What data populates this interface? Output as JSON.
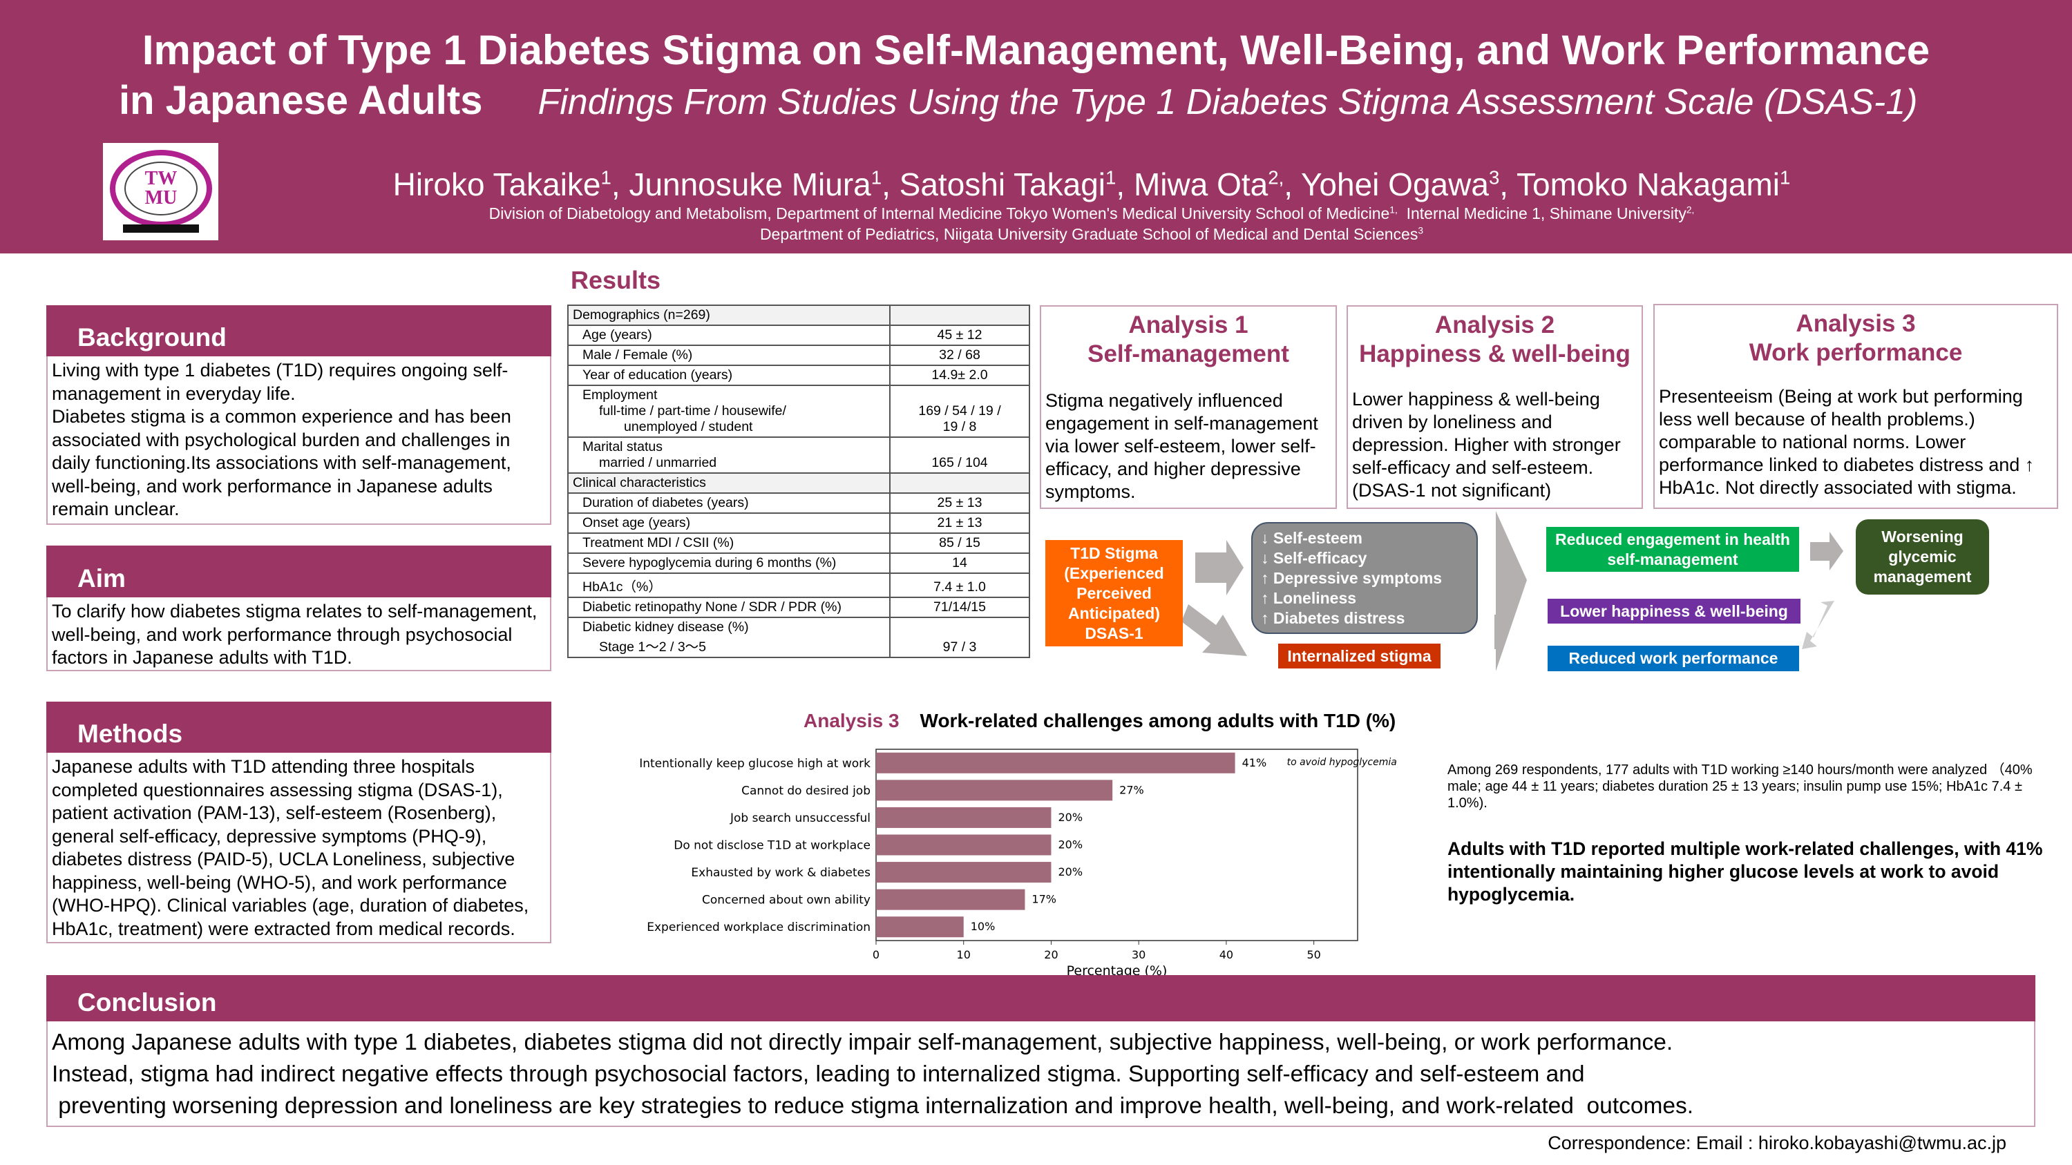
{
  "header": {
    "title_line1": "Impact of Type 1 Diabetes Stigma on Self-Management, Well-Being, and Work Performance",
    "title_line2": "in Japanese Adults",
    "subtitle": "Findings From Studies Using the Type 1 Diabetes Stigma Assessment Scale (DSAS-1)",
    "logo_text": "TWMU",
    "authors": [
      {
        "name": "Hiroko Takaike",
        "aff": "1"
      },
      {
        "name": "Junnosuke Miura",
        "aff": "1"
      },
      {
        "name": "Satoshi Takagi",
        "aff": "1"
      },
      {
        "name": "Miwa Ota",
        "aff": "2,"
      },
      {
        "name": "Yohei Ogawa",
        "aff": "3"
      },
      {
        "name": "Tomoko Nakagami",
        "aff": "1"
      }
    ],
    "affiliation_line1": "Division of Diabetology and Metabolism, Department of Internal Medicine Tokyo Women's Medical University School of Medicine",
    "affiliation_line1_sup": "1,",
    "affiliation_line1b": "Internal Medicine 1, Shimane University",
    "affiliation_line1b_sup": "2,",
    "affiliation_line2": "Department of Pediatrics, Niigata University Graduate School of Medical  and Dental Sciences",
    "affiliation_line2_sup": "3"
  },
  "colors": {
    "brand": "#9b3563",
    "orange": "#ff6600",
    "grey": "#8e8e8e",
    "red": "#cc3300",
    "green": "#00b050",
    "purple": "#7030a0",
    "blue": "#0070c0",
    "darkgreen": "#375623",
    "bar": "#a06a7a"
  },
  "background": {
    "title": "Background",
    "text": "Living with type 1 diabetes (T1D) requires ongoing self-management in everyday life.",
    "text2": "Diabetes stigma is a common experience and has been associated with psychological burden and challenges in daily functioning.Its associations with self-management, well-being, and work performance in Japanese adults remain unclear."
  },
  "aim": {
    "title": "Aim",
    "text": "To clarify how diabetes stigma relates to self-management, well-being, and work performance through psychosocial factors in Japanese adults with T1D."
  },
  "methods": {
    "title": "Methods",
    "text": "Japanese adults with T1D attending three hospitals completed questionnaires assessing stigma (DSAS-1), patient activation (PAM-13), self-esteem (Rosenberg), general self-efficacy, depressive symptoms (PHQ-9), diabetes distress (PAID-5), UCLA Loneliness, subjective happiness, well-being (WHO-5), and work performance (WHO-HPQ). Clinical variables (age, duration of diabetes, HbA1c, treatment) were extracted from medical records."
  },
  "results": {
    "title": "Results",
    "table": [
      {
        "label": "Demographics (n=269)",
        "value": "",
        "group": true
      },
      {
        "label": "Age (years)",
        "value": "45 ± 12"
      },
      {
        "label": "Male / Female  (%)",
        "value": "32 / 68"
      },
      {
        "label": "Year of education (years)",
        "value": "14.9± 2.0"
      },
      {
        "label": "Employment",
        "sub": "full-time / part-time /  housewife/",
        "sub2": "unemployed / student",
        "value": "169 / 54 / 19 /",
        "value2": "19 / 8"
      },
      {
        "label": "Marital status",
        "sub": "married / unmarried",
        "value": "165 / 104"
      },
      {
        "label": "Clinical characteristics",
        "value": "",
        "group": true
      },
      {
        "label": "Duration of diabetes (years)",
        "value": "25 ± 13"
      },
      {
        "label": "Onset age (years)",
        "value": "21 ± 13"
      },
      {
        "label": "Treatment     MDI / CSII  (%)",
        "value": "85 / 15"
      },
      {
        "label": "Severe hypoglycemia during 6 months (%)",
        "value": "14"
      },
      {
        "label": "HbA1c（%）",
        "value": "7.4 ± 1.0"
      },
      {
        "label": "Diabetic retinopathy    None / SDR / PDR     (%)",
        "value": "71/14/15"
      },
      {
        "label": "Diabetic kidney disease (%)",
        "sub": "Stage 1～2  / 3～5",
        "value": "97 / 3"
      }
    ]
  },
  "analyses": [
    {
      "title": "Analysis 1",
      "subtitle": "Self-management",
      "text": "Stigma negatively influenced engagement in self-management via lower self-esteem, lower self-efficacy, and higher depressive symptoms."
    },
    {
      "title": "Analysis 2",
      "subtitle": "Happiness & well-being",
      "text": "Lower happiness & well-being driven by loneliness and depression.   Higher with stronger self-efficacy and self-esteem. (DSAS-1 not significant)"
    },
    {
      "title": "Analysis 3",
      "subtitle": "Work performance",
      "text": "Presenteeism (Being at work but performing less well because of health problems.) comparable to national norms.   Lower performance linked to diabetes distress and ↑ HbA1c.   Not directly associated with stigma."
    }
  ],
  "flow": {
    "stigma": [
      "T1D Stigma",
      "(Experienced",
      "Perceived",
      "Anticipated)",
      "DSAS-1"
    ],
    "mediators": [
      "↓ Self-esteem",
      "↓ Self-efficacy",
      "↑ Depressive symptoms",
      "↑ Loneliness",
      "↑ Diabetes distress"
    ],
    "internalized": "Internalized stigma",
    "outcome1": "Reduced engagement in health self-management",
    "outcome2": "Lower happiness & well-being",
    "outcome3": "Reduced work performance",
    "final": "Worsening glycemic management"
  },
  "chart_data": {
    "type": "bar",
    "orientation": "horizontal",
    "title_prefix": "Analysis 3",
    "title": "Work-related challenges among adults with T1D (%)",
    "categories": [
      "Intentionally keep glucose high at work",
      "Cannot do desired job",
      "Job search unsuccessful",
      "Do not disclose T1D at workplace",
      "Exhausted by work & diabetes",
      "Concerned about own ability",
      "Experienced workplace discrimination"
    ],
    "values": [
      41,
      27,
      20,
      20,
      20,
      17,
      10
    ],
    "data_labels": [
      "41%",
      "27%",
      "20%",
      "20%",
      "20%",
      "17%",
      "10%"
    ],
    "annotation": "to avoid hypoglycemia",
    "xlabel": "Percentage (%)",
    "xlim": [
      0,
      55
    ],
    "xticks": [
      0,
      10,
      20,
      30,
      40,
      50
    ],
    "grid": false
  },
  "work_summary": {
    "text": "Among 269 respondents, 177 adults with T1D working ≥140 hours/month were analyzed （40% male; age 44 ± 11 years; diabetes duration 25 ± 13 years; insulin pump use 15%; HbA1c 7.4 ± 1.0%).",
    "highlight": "Adults with T1D reported multiple work-related challenges, with 41% intentionally maintaining higher glucose levels at work to avoid hypoglycemia."
  },
  "conclusion": {
    "title": "Conclusion",
    "lines": [
      "Among Japanese adults with type 1 diabetes, diabetes stigma did not directly impair self-management, subjective happiness, well-being, or work performance.",
      "Instead, stigma had indirect negative effects through psychosocial factors, leading to internalized stigma. Supporting self-efficacy and self-esteem and",
      " preventing worsening depression and loneliness are key strategies to reduce stigma internalization and improve health, well-being, and work-related  outcomes."
    ]
  },
  "footer": {
    "correspondence": "Correspondence: Email : hiroko.kobayashi@twmu.ac.jp"
  }
}
